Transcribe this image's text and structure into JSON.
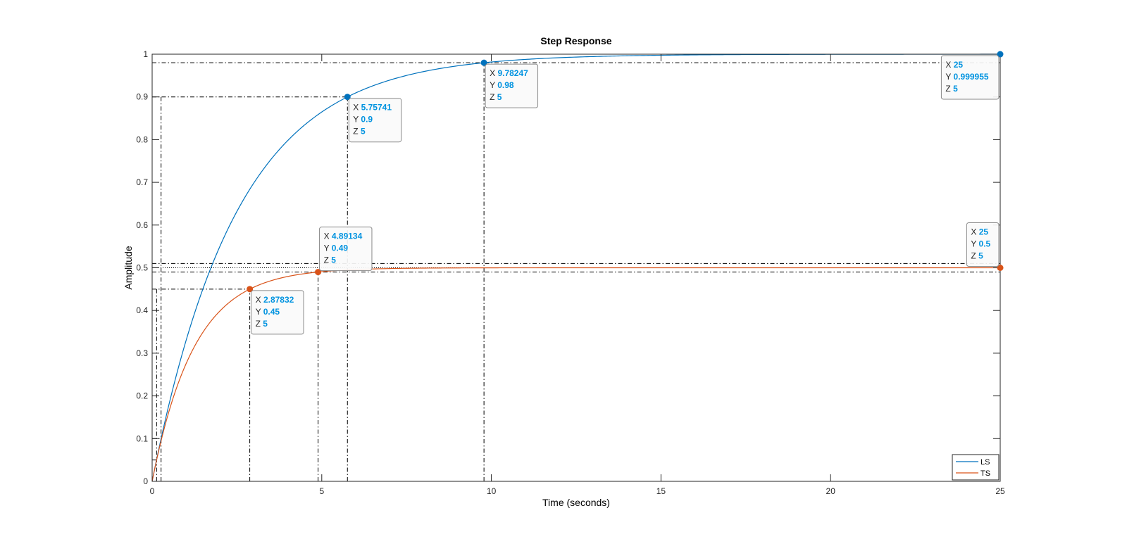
{
  "chart_data": {
    "type": "line",
    "title": "Step Response",
    "xlabel": "Time (seconds)",
    "ylabel": "Amplitude",
    "xlim": [
      0,
      25
    ],
    "ylim": [
      0,
      1
    ],
    "xticks": [
      0,
      5,
      10,
      15,
      20,
      25
    ],
    "yticks": [
      0,
      0.1,
      0.2,
      0.3,
      0.4,
      0.5,
      0.6,
      0.7,
      0.8,
      0.9,
      1
    ],
    "grid": false,
    "legend_position": "bottom-right",
    "series": [
      {
        "name": "LS",
        "color": "#0072BD",
        "final_value": 1,
        "time_constant": 2.5
      },
      {
        "name": "TS",
        "color": "#D95319",
        "final_value": 0.5,
        "time_constant": 1.25
      }
    ],
    "datatips": [
      {
        "series": "LS",
        "x": "5.75741",
        "y": "0.9",
        "z": "5",
        "box": "below-right"
      },
      {
        "series": "LS",
        "x": "9.78247",
        "y": "0.98",
        "z": "5",
        "box": "below-right"
      },
      {
        "series": "LS",
        "x": "25",
        "y": "0.999955",
        "z": "5",
        "box": "below-left"
      },
      {
        "series": "TS",
        "x": "4.89134",
        "y": "0.49",
        "z": "5",
        "box": "above-right"
      },
      {
        "series": "TS",
        "x": "2.87832",
        "y": "0.45",
        "z": "5",
        "box": "below-right"
      },
      {
        "series": "TS",
        "x": "25",
        "y": "0.5",
        "z": "5",
        "box": "above-left"
      }
    ],
    "characteristic_lines": {
      "rise_time": [
        {
          "series": "LS",
          "x": [
            0.263,
            5.757
          ],
          "y": [
            0.1,
            0.9
          ]
        },
        {
          "series": "TS",
          "x": [
            0.132,
            2.878
          ],
          "y": [
            0.05,
            0.45
          ]
        }
      ],
      "settling_time": [
        {
          "series": "LS",
          "x": 9.78247,
          "band": [
            0.98,
            1.02
          ]
        },
        {
          "series": "TS",
          "x": 4.89134,
          "band": [
            0.49,
            0.51
          ]
        }
      ],
      "steady_state": [
        {
          "series": "LS",
          "y": 1
        },
        {
          "series": "TS",
          "y": 0.5
        }
      ]
    }
  }
}
